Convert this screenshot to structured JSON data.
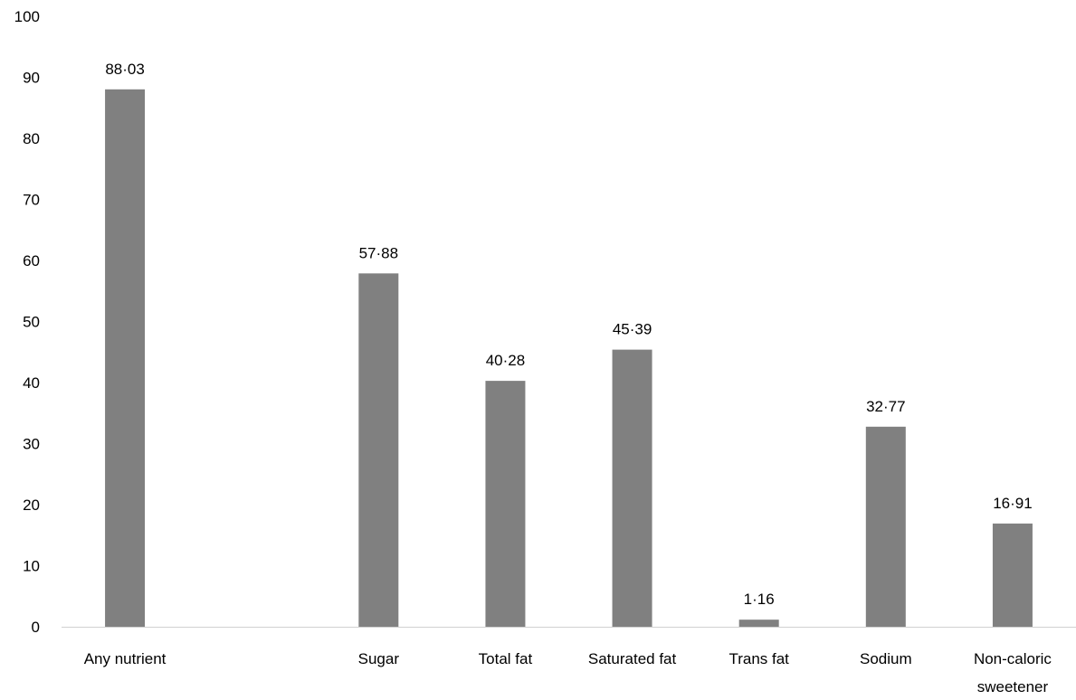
{
  "chart_data": {
    "type": "bar",
    "title": "",
    "xlabel": "",
    "ylabel": "",
    "ylim": [
      0,
      100
    ],
    "yticks": [
      0,
      10,
      20,
      30,
      40,
      50,
      60,
      70,
      80,
      90,
      100
    ],
    "grid": false,
    "legend": "none",
    "bar_color": "#808080",
    "categories": [
      [
        "Any nutrient"
      ],
      [
        ""
      ],
      [
        "Sugar"
      ],
      [
        "Total fat"
      ],
      [
        "Saturated fat"
      ],
      [
        "Trans fat"
      ],
      [
        "Sodium"
      ],
      [
        "Non-caloric",
        "sweetener"
      ]
    ],
    "values": [
      88.03,
      null,
      57.88,
      40.28,
      45.39,
      1.16,
      32.77,
      16.91
    ],
    "data_labels": [
      "88·03",
      "",
      "57·88",
      "40·28",
      "45·39",
      "1·16",
      "32·77",
      "16·91"
    ]
  }
}
